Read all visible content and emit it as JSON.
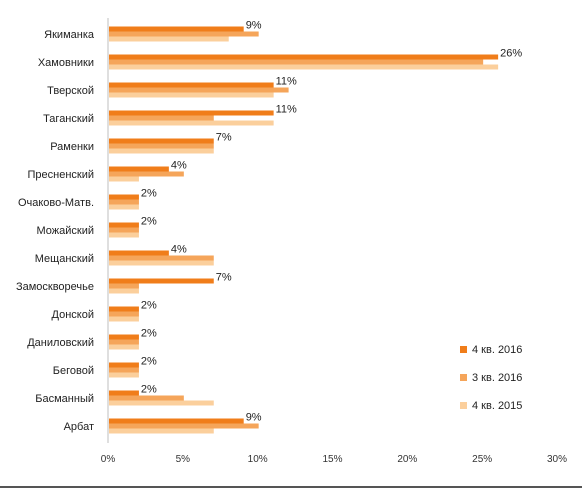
{
  "chart_data": {
    "type": "bar",
    "orientation": "horizontal",
    "title": "",
    "xlabel": "",
    "ylabel": "",
    "xlim": [
      0,
      30
    ],
    "x_ticks": [
      "0%",
      "5%",
      "10%",
      "15%",
      "20%",
      "25%",
      "30%"
    ],
    "grid": false,
    "legend_position": "right",
    "categories": [
      "Якиманка",
      "Хамовники",
      "Тверской",
      "Таганский",
      "Раменки",
      "Пресненский",
      "Очаково-Матв.",
      "Можайский",
      "Мещанский",
      "Замоскворечье",
      "Донской",
      "Даниловский",
      "Беговой",
      "Басманный",
      "Арбат"
    ],
    "series": [
      {
        "name": "4 кв. 2016",
        "color": "#f07d1a",
        "values": [
          9,
          26,
          11,
          11,
          7,
          4,
          2,
          2,
          4,
          7,
          2,
          2,
          2,
          2,
          9
        ]
      },
      {
        "name": "3 кв. 2016",
        "color": "#f5a55a",
        "values": [
          10,
          25,
          12,
          7,
          7,
          5,
          2,
          2,
          7,
          2,
          2,
          2,
          2,
          5,
          10
        ]
      },
      {
        "name": "4 кв. 2015",
        "color": "#fbcf9c",
        "values": [
          8,
          26,
          11,
          11,
          7,
          2,
          2,
          2,
          7,
          2,
          2,
          2,
          2,
          7,
          7
        ]
      }
    ],
    "data_labels": [
      "9%",
      "26%",
      "11%",
      "11%",
      "7%",
      "4%",
      "2%",
      "2%",
      "4%",
      "7%",
      "2%",
      "2%",
      "2%",
      "2%",
      "9%"
    ]
  }
}
